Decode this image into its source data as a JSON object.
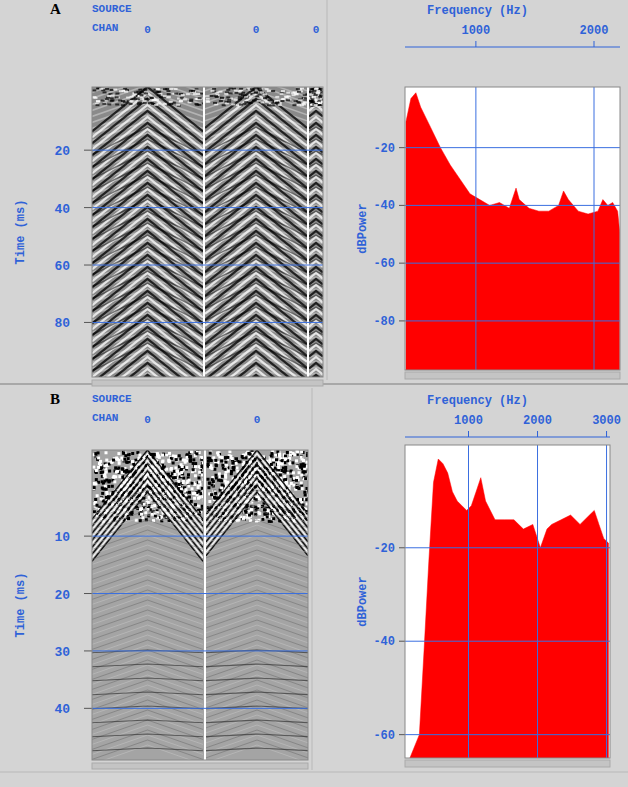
{
  "chart_data": [
    {
      "type": "seismic_gather",
      "panel_label": "A",
      "header_labels": [
        "SOURCE",
        "CHAN"
      ],
      "categories": [
        "0",
        "0",
        "0"
      ],
      "ylabel": "Time (ms)",
      "ylim": [
        -2,
        99
      ],
      "yticks": [
        20,
        40,
        60,
        80
      ],
      "grid": true
    },
    {
      "type": "area",
      "xlabel": "Frequency (Hz)",
      "ylabel": "dBPower",
      "color": "#ff0000",
      "grid": true,
      "x": [
        408,
        450,
        492,
        533,
        617,
        700,
        783,
        867,
        950,
        1033,
        1117,
        1200,
        1242,
        1283,
        1340,
        1367,
        1450,
        1533,
        1617,
        1700,
        1742,
        1783,
        1867,
        1950,
        2033,
        2075,
        2117,
        2158,
        2200,
        2217
      ],
      "values": [
        -11,
        -3,
        -1,
        -6,
        -13,
        -20,
        -26,
        -31,
        -36,
        -38,
        -40,
        -39,
        -40,
        -41,
        -34,
        -38,
        -41,
        -42,
        -42,
        -40,
        -35,
        -38,
        -42,
        -43,
        -42,
        -38,
        -40,
        -39,
        -42,
        -49
      ],
      "xlim": [
        400,
        2220
      ],
      "xticks": [
        1000,
        2000
      ],
      "ylim": [
        -97,
        1
      ],
      "yticks": [
        -20,
        -40,
        -60,
        -80
      ]
    },
    {
      "type": "seismic_gather",
      "panel_label": "B",
      "header_labels": [
        "SOURCE",
        "CHAN"
      ],
      "categories": [
        "0",
        "0"
      ],
      "ylabel": "Time (ms)",
      "ylim": [
        -5,
        49
      ],
      "yticks": [
        10,
        20,
        30,
        40
      ],
      "grid": true
    },
    {
      "type": "area",
      "xlabel": "Frequency (Hz)",
      "ylabel": "dBPower",
      "color": "#ff0000",
      "grid": true,
      "x": [
        151,
        288,
        356,
        425,
        493,
        562,
        630,
        699,
        767,
        836,
        904,
        973,
        1041,
        1110,
        1178,
        1247,
        1384,
        1521,
        1658,
        1795,
        1932,
        2041,
        2137,
        2205,
        2342,
        2479,
        2616,
        2753,
        2822,
        2890,
        2959,
        3027
      ],
      "values": [
        -65,
        -60,
        -42,
        -23,
        -6,
        -1,
        -2,
        -4,
        -8,
        -10,
        -11,
        -12,
        -11,
        -8,
        -5,
        -10,
        -14,
        -14,
        -14,
        -16,
        -15,
        -20,
        -16,
        -15,
        -14,
        -13,
        -15,
        -13,
        -12,
        -15,
        -18,
        -19
      ],
      "xlim": [
        80,
        3050
      ],
      "xticks": [
        1000,
        2000,
        3000
      ],
      "ylim": [
        -65,
        2
      ],
      "yticks": [
        -20,
        -40,
        -60
      ]
    }
  ]
}
